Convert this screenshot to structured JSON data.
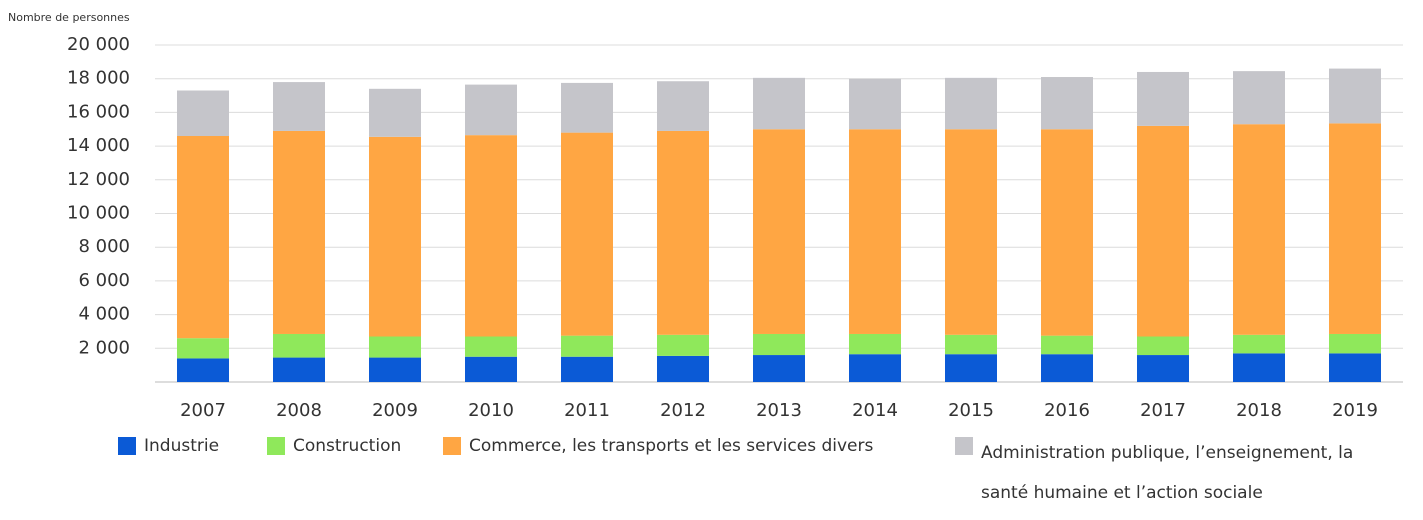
{
  "chart_data": {
    "type": "stacked_bar",
    "y_label": "Nombre de personnes",
    "categories": [
      "2007",
      "2008",
      "2009",
      "2010",
      "2011",
      "2012",
      "2013",
      "2014",
      "2015",
      "2016",
      "2017",
      "2018",
      "2019"
    ],
    "series": [
      {
        "name": "Industrie",
        "color": "#0b5ad6",
        "values": [
          1400,
          1450,
          1450,
          1500,
          1500,
          1550,
          1600,
          1650,
          1650,
          1650,
          1600,
          1700,
          1700
        ]
      },
      {
        "name": "Construction",
        "color": "#8fe85b",
        "values": [
          1200,
          1400,
          1250,
          1200,
          1250,
          1250,
          1250,
          1200,
          1150,
          1100,
          1100,
          1100,
          1150
        ]
      },
      {
        "name": "Commerce, les transports et les services divers",
        "color": "#ffa643",
        "values": [
          12000,
          12050,
          11850,
          11950,
          12050,
          12100,
          12150,
          12150,
          12200,
          12250,
          12500,
          12500,
          12500
        ]
      },
      {
        "name": "Administration publique, l’enseignement, la santé humaine et l’action sociale",
        "color": "#c5c5ca",
        "values": [
          2700,
          2900,
          2850,
          3000,
          2950,
          2950,
          3050,
          3000,
          3050,
          3100,
          3200,
          3150,
          3250
        ]
      }
    ],
    "ylim": [
      0,
      20000
    ],
    "yticks": [
      {
        "value": 2000,
        "label": "2 000"
      },
      {
        "value": 4000,
        "label": "4 000"
      },
      {
        "value": 6000,
        "label": "6 000"
      },
      {
        "value": 8000,
        "label": "8 000"
      },
      {
        "value": 10000,
        "label": "10 000"
      },
      {
        "value": 12000,
        "label": "12 000"
      },
      {
        "value": 14000,
        "label": "14 000"
      },
      {
        "value": 16000,
        "label": "16 000"
      },
      {
        "value": 18000,
        "label": "18 000"
      },
      {
        "value": 20000,
        "label": "20 000"
      }
    ],
    "grid": true
  }
}
